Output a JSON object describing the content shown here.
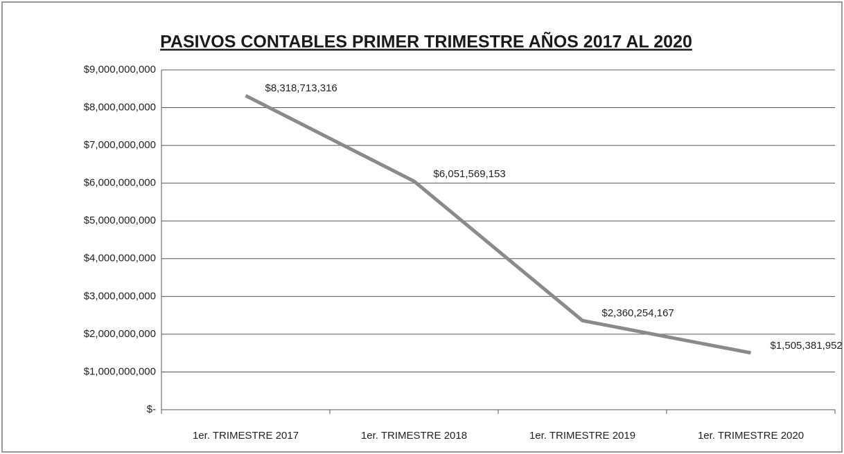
{
  "chart_data": {
    "type": "line",
    "title": "PASIVOS CONTABLES PRIMER TRIMESTRE  AÑOS 2017 AL 2020",
    "categories": [
      "1er. TRIMESTRE 2017",
      "1er. TRIMESTRE 2018",
      "1er. TRIMESTRE 2019",
      "1er. TRIMESTRE 2020"
    ],
    "values": [
      8318713316,
      6051569153,
      2360254167,
      1505381952
    ],
    "value_labels": [
      "$8,318,713,316",
      "$6,051,569,153",
      "$2,360,254,167",
      "$1,505,381,952"
    ],
    "color": "#8a8a8a",
    "ylim": [
      0,
      9000000000
    ],
    "yticks": [
      {
        "value": 0,
        "label": "$-"
      },
      {
        "value": 1000000000,
        "label": "$1,000,000,000"
      },
      {
        "value": 2000000000,
        "label": "$2,000,000,000"
      },
      {
        "value": 3000000000,
        "label": "$3,000,000,000"
      },
      {
        "value": 4000000000,
        "label": "$4,000,000,000"
      },
      {
        "value": 5000000000,
        "label": "$5,000,000,000"
      },
      {
        "value": 6000000000,
        "label": "$6,000,000,000"
      },
      {
        "value": 7000000000,
        "label": "$7,000,000,000"
      },
      {
        "value": 8000000000,
        "label": "$8,000,000,000"
      },
      {
        "value": 9000000000,
        "label": "$9,000,000,000"
      }
    ],
    "grid": true
  }
}
